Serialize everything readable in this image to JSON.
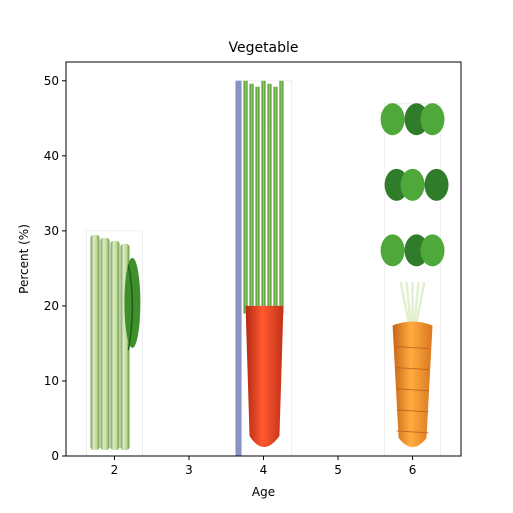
{
  "chart_data": {
    "type": "bar",
    "title": "Vegetable",
    "xlabel": "Age",
    "ylabel": "Percent (%)",
    "x": [
      2,
      4,
      6
    ],
    "values": [
      30,
      50,
      47
    ],
    "bar_width": 0.75,
    "xlim": [
      1.35,
      6.65
    ],
    "ylim": [
      0,
      52.5
    ],
    "xticks": [
      2,
      3,
      4,
      5,
      6
    ],
    "yticks": [
      0,
      10,
      20,
      30,
      40,
      50
    ],
    "grid": false,
    "bar_images": [
      "celery-stalks",
      "carrot-with-greens",
      "carrot-with-leafy-greens"
    ],
    "colors": {
      "celery_stalk": "#b8d98c",
      "celery_leaf": "#3f8f2d",
      "carrot_green": "#4fa83a",
      "carrot_red": "#d93a1c",
      "carrot_orange": "#e8892a",
      "leafy_dark": "#2f7d2a"
    }
  }
}
